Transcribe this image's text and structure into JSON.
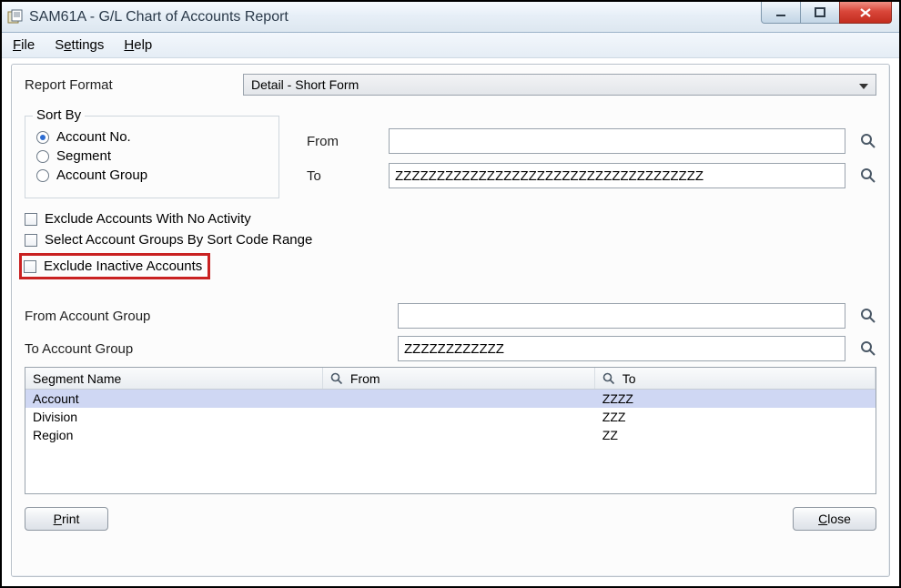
{
  "window": {
    "title": "SAM61A - G/L Chart of Accounts Report"
  },
  "menubar": {
    "file": "File",
    "settings": "Settings",
    "help": "Help"
  },
  "report_format": {
    "label": "Report Format",
    "value": "Detail - Short Form"
  },
  "sort_by": {
    "legend": "Sort By",
    "options": {
      "account_no": "Account No.",
      "segment": "Segment",
      "account_group": "Account Group"
    },
    "selected": "account_no"
  },
  "range": {
    "from_label": "From",
    "from_value": "",
    "to_label": "To",
    "to_value": "ZZZZZZZZZZZZZZZZZZZZZZZZZZZZZZZZZZZZZ"
  },
  "checkboxes": {
    "exclude_no_activity": "Exclude Accounts With No Activity",
    "select_groups_by_sort_code": "Select Account Groups By Sort Code Range",
    "exclude_inactive": "Exclude Inactive Accounts"
  },
  "account_group_range": {
    "from_label": "From Account Group",
    "from_value": "",
    "to_label": "To Account Group",
    "to_value": "ZZZZZZZZZZZZ"
  },
  "segment_table": {
    "columns": {
      "segment_name": "Segment Name",
      "from": "From",
      "to": "To"
    },
    "rows": [
      {
        "name": "Account",
        "from": "",
        "to": "ZZZZ",
        "selected": true
      },
      {
        "name": "Division",
        "from": "",
        "to": "ZZZ",
        "selected": false
      },
      {
        "name": "Region",
        "from": "",
        "to": "ZZ",
        "selected": false
      }
    ]
  },
  "buttons": {
    "print": "Print",
    "close": "Close"
  },
  "colors": {
    "titlebar_top": "#f7fbff",
    "titlebar_bottom": "#dde7f0",
    "close_red_top": "#f08f84",
    "close_red_bottom": "#c32d1f",
    "panel_bg": "#fcfcfc",
    "panel_border": "#b8c0c9",
    "field_border": "#9aa3ad",
    "highlight_red": "#c92121",
    "row_selected": "#cfd7f3",
    "radio_dot": "#2d6cd2"
  }
}
